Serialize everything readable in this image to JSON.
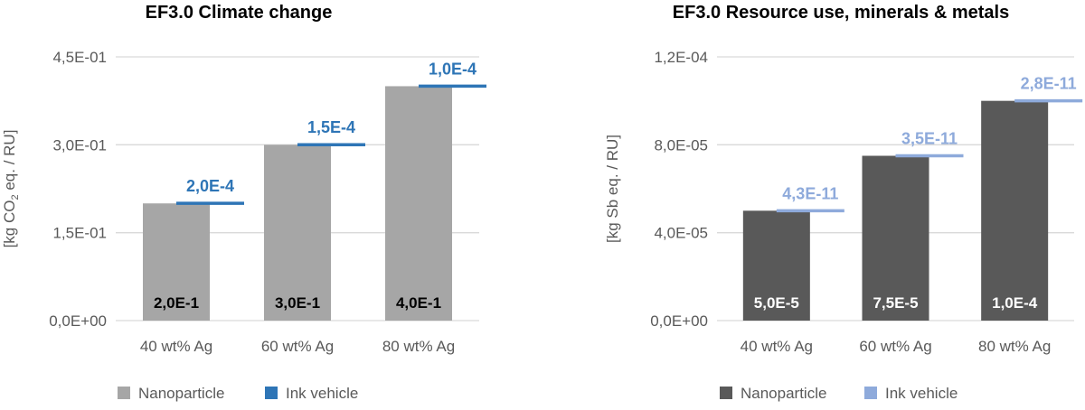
{
  "chart_data": [
    {
      "type": "bar",
      "title": "EF3.0 Climate change",
      "ylabel_parts": [
        "[kg CO",
        "2",
        " eq. / RU]"
      ],
      "categories": [
        "40 wt% Ag",
        "60 wt% Ag",
        "80 wt% Ag"
      ],
      "ylim": [
        0,
        0.45
      ],
      "yticks": [
        0,
        0.15,
        0.3,
        0.45
      ],
      "ytick_labels": [
        "0,0E+00",
        "1,5E-01",
        "3,0E-01",
        "4,5E-01"
      ],
      "grid": true,
      "legend_position": "bottom",
      "series": [
        {
          "name": "Nanoparticle",
          "mark": "bar",
          "color": "#a6a6a6",
          "values": [
            0.2,
            0.3,
            0.4
          ],
          "labels": [
            "2,0E-1",
            "3,0E-1",
            "4,0E-1"
          ],
          "label_color": "#000000"
        },
        {
          "name": "Ink vehicle",
          "mark": "line-segment",
          "color": "#2e75b6",
          "values": [
            0.0002,
            0.00015,
            0.0001
          ],
          "labels": [
            "2,0E-4",
            "1,5E-4",
            "1,0E-4"
          ],
          "label_color": "#2e75b6"
        }
      ]
    },
    {
      "type": "bar",
      "title": "EF3.0 Resource use, minerals & metals",
      "ylabel_parts": [
        "[kg Sb eq. / RU]"
      ],
      "categories": [
        "40 wt% Ag",
        "60 wt% Ag",
        "80 wt% Ag"
      ],
      "ylim": [
        0,
        0.00012
      ],
      "yticks": [
        0,
        4e-05,
        8e-05,
        0.00012
      ],
      "ytick_labels": [
        "0,0E+00",
        "4,0E-05",
        "8,0E-05",
        "1,2E-04"
      ],
      "grid": true,
      "legend_position": "bottom",
      "series": [
        {
          "name": "Nanoparticle",
          "mark": "bar",
          "color": "#595959",
          "values": [
            5e-05,
            7.5e-05,
            0.0001
          ],
          "labels": [
            "5,0E-5",
            "7,5E-5",
            "1,0E-4"
          ],
          "label_color": "#ffffff"
        },
        {
          "name": "Ink vehicle",
          "mark": "line-segment",
          "color": "#8eaadb",
          "values": [
            4.3e-11,
            3.5e-11,
            2.8e-11
          ],
          "labels": [
            "4,3E-11",
            "3,5E-11",
            "2,8E-11"
          ],
          "label_color": "#8eaadb"
        }
      ]
    }
  ]
}
